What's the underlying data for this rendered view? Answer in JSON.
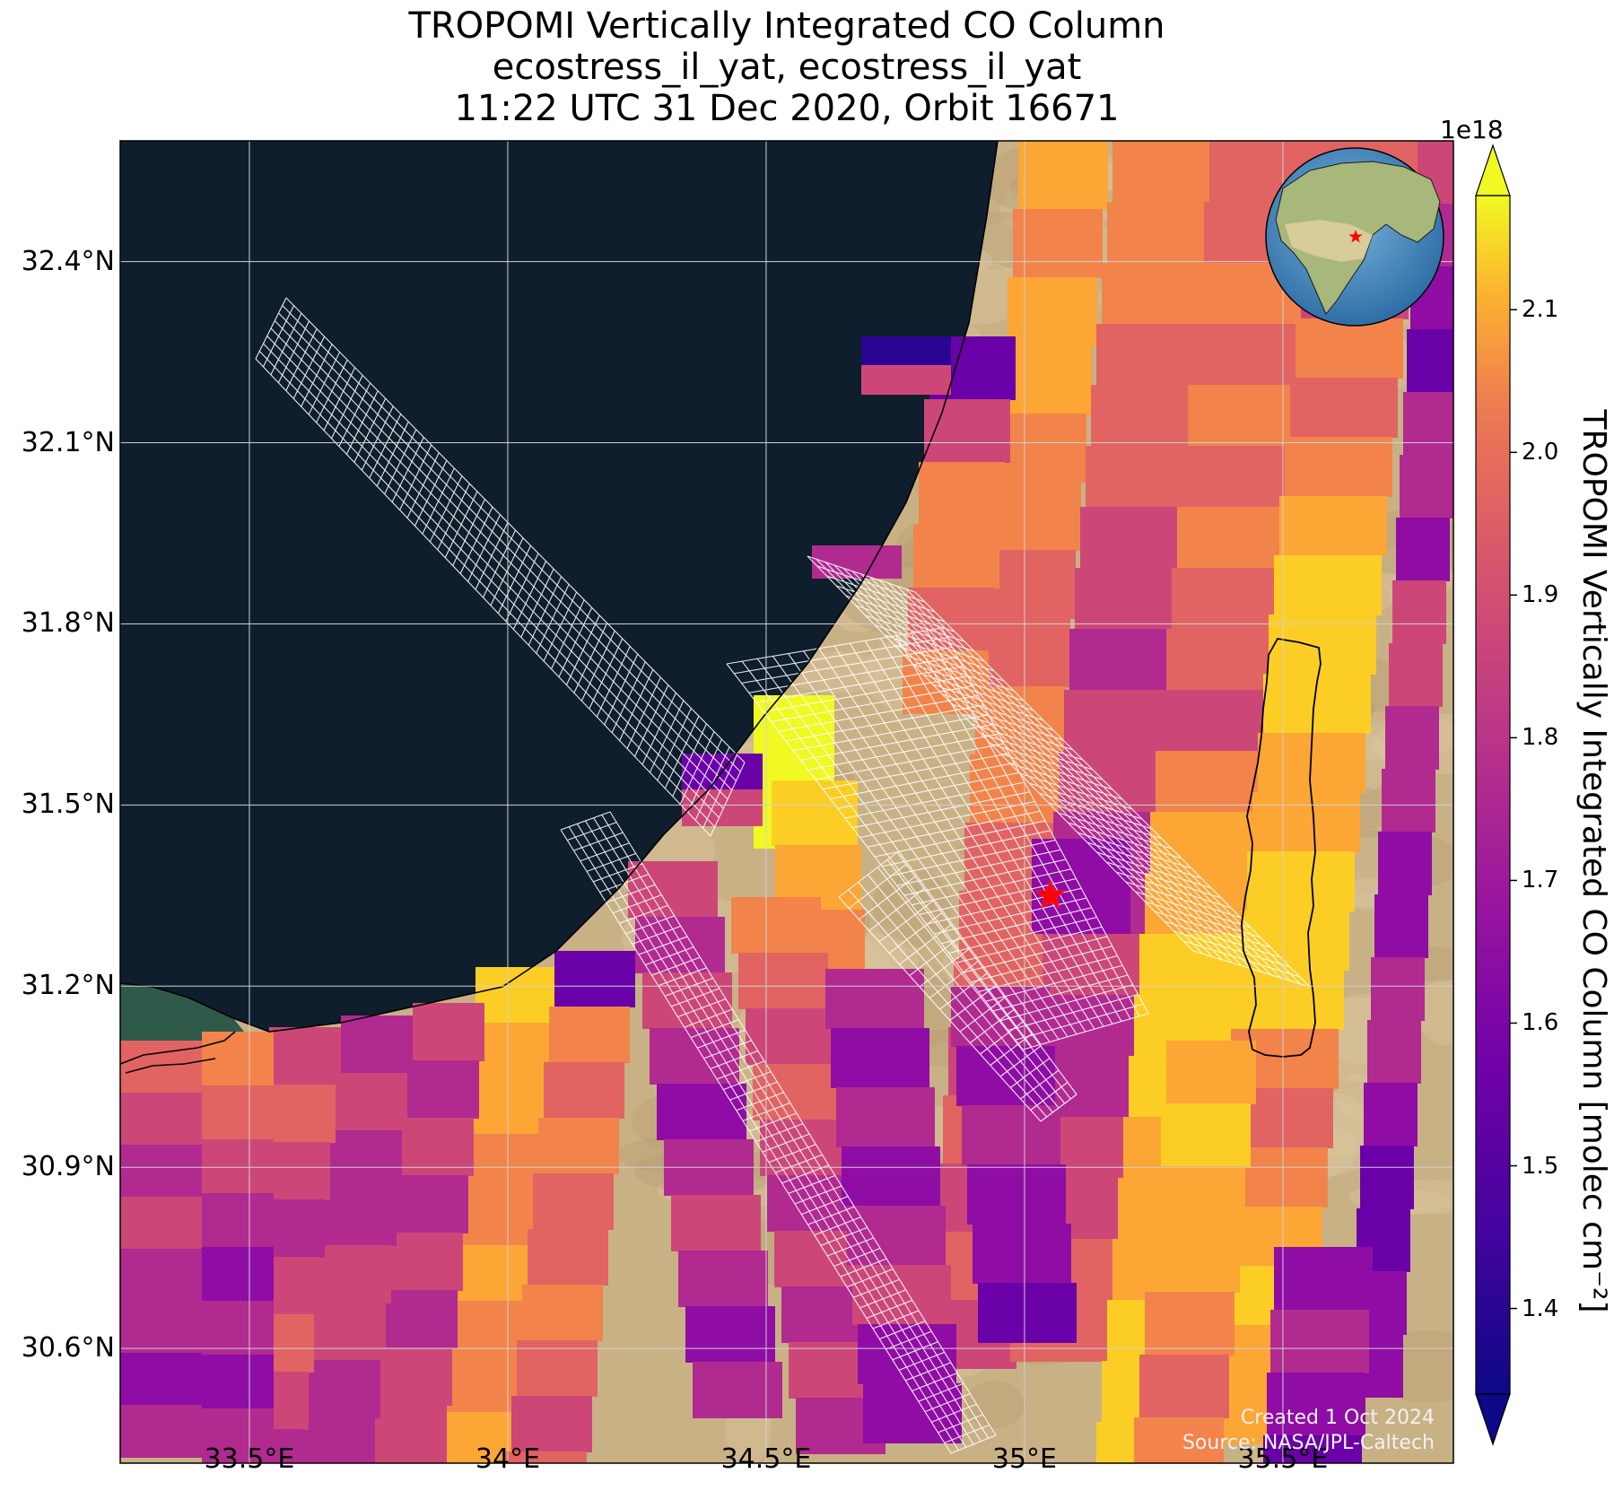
{
  "title": {
    "line1": "TROPOMI Vertically Integrated CO Column",
    "line2": "ecostress_il_yat, ecostress_il_yat",
    "line3": "11:22 UTC 31 Dec 2020, Orbit 16671"
  },
  "map": {
    "extent": {
      "lon_min": 33.25,
      "lon_max": 35.83,
      "lat_min": 30.41,
      "lat_max": 32.6
    },
    "lat_ticks": [
      {
        "value": 32.4,
        "label": "32.4°N"
      },
      {
        "value": 32.1,
        "label": "32.1°N"
      },
      {
        "value": 31.8,
        "label": "31.8°N"
      },
      {
        "value": 31.5,
        "label": "31.5°N"
      },
      {
        "value": 31.2,
        "label": "31.2°N"
      },
      {
        "value": 30.9,
        "label": "30.9°N"
      },
      {
        "value": 30.6,
        "label": "30.6°N"
      }
    ],
    "lon_ticks": [
      {
        "value": 33.5,
        "label": "33.5°E"
      },
      {
        "value": 34.0,
        "label": "34°E"
      },
      {
        "value": 34.5,
        "label": "34.5°E"
      },
      {
        "value": 35.0,
        "label": "35°E"
      },
      {
        "value": 35.5,
        "label": "35.5°E"
      }
    ],
    "gridlines": true,
    "target_marker": {
      "lon": 35.05,
      "lat": 31.35,
      "symbol": "star",
      "color": "#ff0000"
    },
    "colors": {
      "sea": "#0e1e2c",
      "land": "#c9b186",
      "grid": "#d0d0d0",
      "swath_outline": "#ffffff"
    }
  },
  "colorbar": {
    "label": "TROPOMI Vertically Integrated CO Column [molec cm⁻²]",
    "exponent": "1e18",
    "vmin": 1.34,
    "vmax": 2.18,
    "colormap": "plasma",
    "extend": "both",
    "ticks": [
      {
        "value": 1.4,
        "label": "1.4"
      },
      {
        "value": 1.5,
        "label": "1.5"
      },
      {
        "value": 1.6,
        "label": "1.6"
      },
      {
        "value": 1.7,
        "label": "1.7"
      },
      {
        "value": 1.8,
        "label": "1.8"
      },
      {
        "value": 1.9,
        "label": "1.9"
      },
      {
        "value": 2.0,
        "label": "2.0"
      },
      {
        "value": 2.1,
        "label": "2.1"
      }
    ]
  },
  "inset_globe": {
    "marker_color": "#ff0000"
  },
  "credits": {
    "created": "Created 1 Oct 2024",
    "source": "Source: NASA/JPL-Caltech"
  }
}
